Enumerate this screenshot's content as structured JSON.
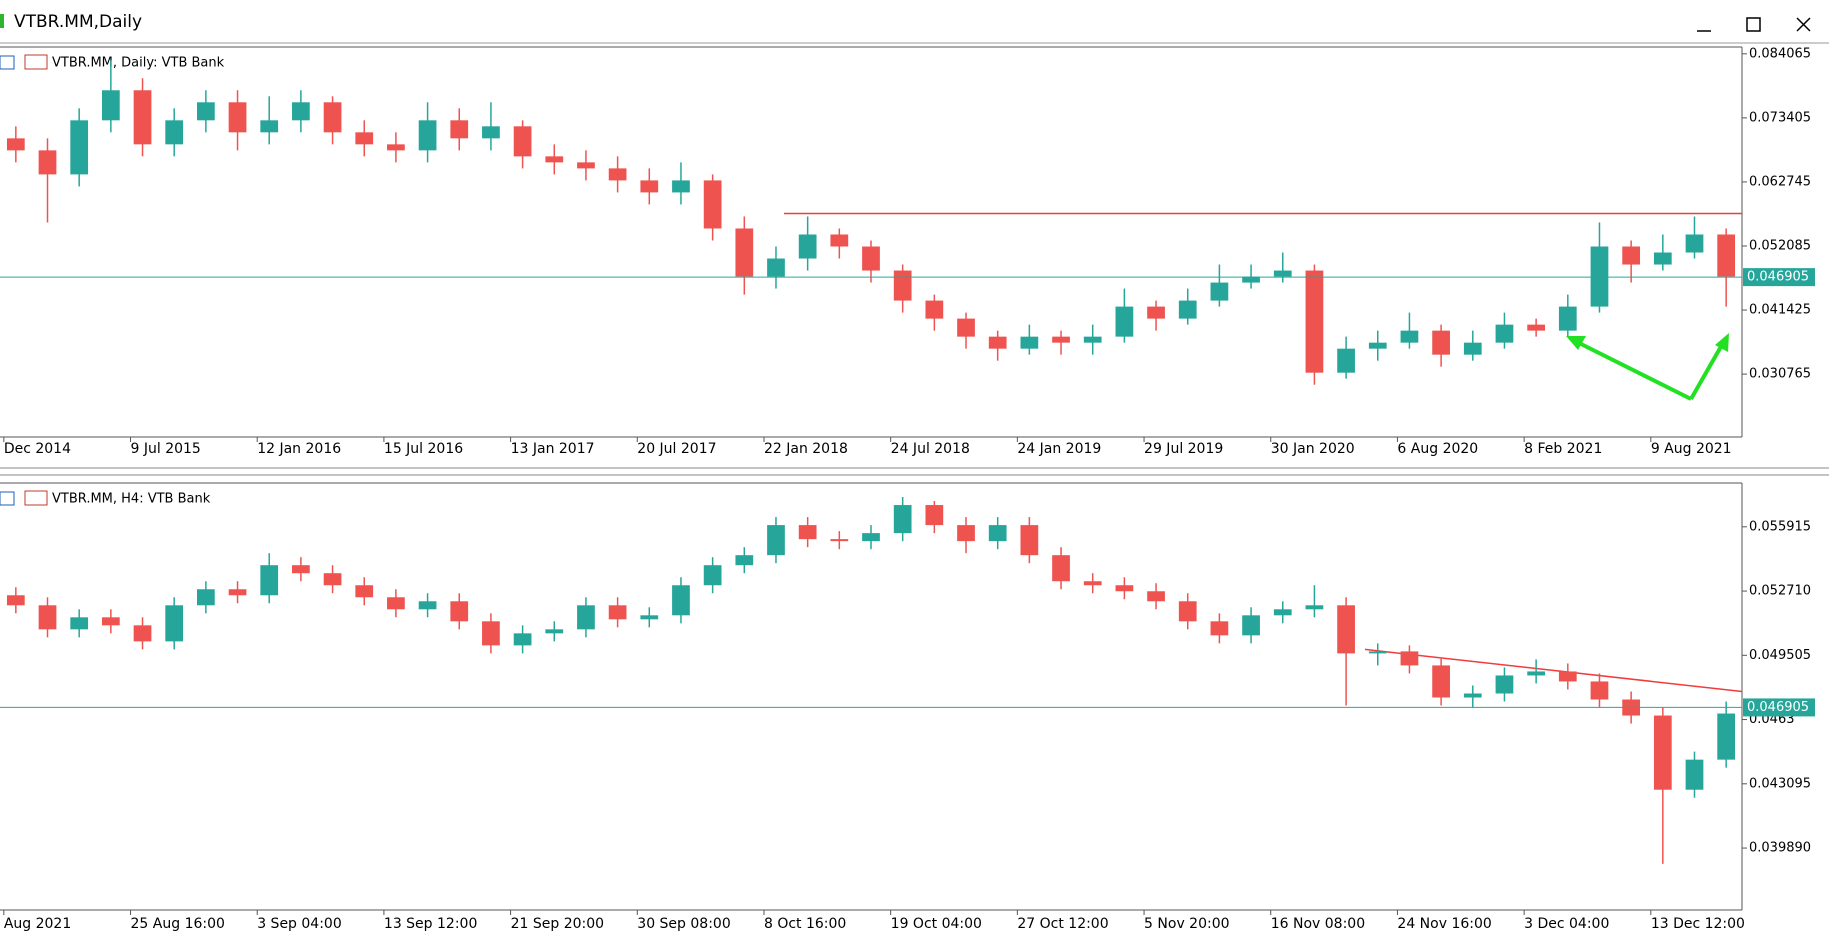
{
  "window": {
    "title": "VTBR.MM,Daily"
  },
  "chart_data": [
    {
      "type": "candlestick",
      "title": "VTBR.MM, Daily:  VTB Bank",
      "categories": [
        "Dec 2014",
        null,
        null,
        null,
        "9 Jul 2015",
        null,
        null,
        null,
        "12 Jan 2016",
        null,
        null,
        null,
        "15 Jul 2016",
        null,
        null,
        null,
        "13 Jan 2017",
        null,
        null,
        null,
        "20 Jul 2017",
        null,
        null,
        null,
        "22 Jan 2018",
        null,
        null,
        null,
        "24 Jul 2018",
        null,
        null,
        null,
        "24 Jan 2019",
        null,
        null,
        null,
        "29 Jul 2019",
        null,
        null,
        null,
        "30 Jan 2020",
        null,
        null,
        null,
        "6 Aug 2020",
        null,
        null,
        null,
        "8 Feb 2021",
        null,
        null,
        null,
        "9 Aug 2021",
        null,
        null
      ],
      "open": [
        0.07,
        0.068,
        0.064,
        0.073,
        0.078,
        0.069,
        0.073,
        0.076,
        0.071,
        0.073,
        0.076,
        0.071,
        0.069,
        0.068,
        0.073,
        0.07,
        0.072,
        0.067,
        0.066,
        0.065,
        0.063,
        0.061,
        0.063,
        0.055,
        0.047,
        0.05,
        0.054,
        0.052,
        0.048,
        0.043,
        0.04,
        0.037,
        0.035,
        0.037,
        0.036,
        0.037,
        0.042,
        0.04,
        0.043,
        0.046,
        0.047,
        0.048,
        0.031,
        0.035,
        0.036,
        0.038,
        0.034,
        0.036,
        0.039,
        0.038,
        0.042,
        0.052,
        0.049,
        0.051,
        0.054
      ],
      "high": [
        0.072,
        0.07,
        0.075,
        0.083,
        0.08,
        0.075,
        0.078,
        0.078,
        0.077,
        0.078,
        0.077,
        0.073,
        0.071,
        0.076,
        0.075,
        0.076,
        0.073,
        0.069,
        0.068,
        0.067,
        0.065,
        0.066,
        0.064,
        0.057,
        0.052,
        0.057,
        0.055,
        0.053,
        0.049,
        0.044,
        0.041,
        0.038,
        0.039,
        0.038,
        0.039,
        0.045,
        0.043,
        0.045,
        0.049,
        0.049,
        0.051,
        0.049,
        0.037,
        0.038,
        0.041,
        0.039,
        0.038,
        0.041,
        0.04,
        0.044,
        0.056,
        0.053,
        0.054,
        0.057,
        0.055
      ],
      "low": [
        0.066,
        0.056,
        0.062,
        0.071,
        0.067,
        0.067,
        0.071,
        0.068,
        0.069,
        0.071,
        0.069,
        0.067,
        0.066,
        0.066,
        0.068,
        0.068,
        0.065,
        0.064,
        0.063,
        0.061,
        0.059,
        0.059,
        0.053,
        0.044,
        0.045,
        0.048,
        0.05,
        0.046,
        0.041,
        0.038,
        0.035,
        0.033,
        0.034,
        0.034,
        0.034,
        0.036,
        0.038,
        0.039,
        0.042,
        0.045,
        0.046,
        0.029,
        0.03,
        0.033,
        0.035,
        0.032,
        0.033,
        0.035,
        0.037,
        0.037,
        0.041,
        0.046,
        0.048,
        0.05,
        0.042
      ],
      "close": [
        0.068,
        0.064,
        0.073,
        0.078,
        0.069,
        0.073,
        0.076,
        0.071,
        0.073,
        0.076,
        0.071,
        0.069,
        0.068,
        0.073,
        0.07,
        0.072,
        0.067,
        0.066,
        0.065,
        0.063,
        0.061,
        0.063,
        0.055,
        0.047,
        0.05,
        0.054,
        0.052,
        0.048,
        0.043,
        0.04,
        0.037,
        0.035,
        0.037,
        0.036,
        0.037,
        0.042,
        0.04,
        0.043,
        0.046,
        0.047,
        0.048,
        0.031,
        0.035,
        0.036,
        0.038,
        0.034,
        0.036,
        0.039,
        0.038,
        0.042,
        0.052,
        0.049,
        0.051,
        0.054,
        0.047
      ],
      "colors": {
        "up": "#26a69a",
        "down": "#ef5350"
      },
      "ylim": [
        0.0203,
        0.0852
      ],
      "yticks": [
        0.084065,
        0.073405,
        0.062745,
        0.052085,
        0.041425,
        0.030765
      ],
      "price_line": 0.046905,
      "resistance": 0.0575
    },
    {
      "type": "candlestick",
      "title": "VTBR.MM, H4:  VTB Bank",
      "categories": [
        "Aug 2021",
        null,
        null,
        null,
        "25 Aug 16:00",
        null,
        null,
        null,
        "3 Sep 04:00",
        null,
        null,
        null,
        "13 Sep 12:00",
        null,
        null,
        null,
        "21 Sep 20:00",
        null,
        null,
        null,
        "30 Sep 08:00",
        null,
        null,
        null,
        "8 Oct 16:00",
        null,
        null,
        null,
        "19 Oct 04:00",
        null,
        null,
        null,
        "27 Oct 12:00",
        null,
        null,
        null,
        "5 Nov 20:00",
        null,
        null,
        null,
        "16 Nov 08:00",
        null,
        null,
        null,
        "24 Nov 16:00",
        null,
        null,
        null,
        "3 Dec 04:00",
        null,
        null,
        null,
        "13 Dec 12:00",
        null,
        null
      ],
      "open": [
        0.0525,
        0.052,
        0.0508,
        0.0514,
        0.051,
        0.0502,
        0.052,
        0.0528,
        0.0525,
        0.054,
        0.0536,
        0.053,
        0.0524,
        0.0518,
        0.0522,
        0.0512,
        0.05,
        0.0506,
        0.0508,
        0.052,
        0.0513,
        0.0515,
        0.053,
        0.054,
        0.0545,
        0.056,
        0.0553,
        0.0552,
        0.0556,
        0.057,
        0.056,
        0.0552,
        0.056,
        0.0545,
        0.0532,
        0.053,
        0.0527,
        0.0522,
        0.0512,
        0.0505,
        0.0515,
        0.0518,
        0.052,
        0.0496,
        0.0497,
        0.049,
        0.0474,
        0.0476,
        0.0485,
        0.0487,
        0.0482,
        0.0473,
        0.0465,
        0.0428,
        0.0443
      ],
      "high": [
        0.0529,
        0.0524,
        0.0518,
        0.0518,
        0.0514,
        0.0524,
        0.0532,
        0.0532,
        0.0546,
        0.0544,
        0.054,
        0.0534,
        0.0528,
        0.0526,
        0.0526,
        0.0516,
        0.051,
        0.0512,
        0.0524,
        0.0524,
        0.0519,
        0.0534,
        0.0544,
        0.0549,
        0.0564,
        0.0564,
        0.0557,
        0.056,
        0.0574,
        0.0572,
        0.0564,
        0.0564,
        0.0564,
        0.0549,
        0.0536,
        0.0534,
        0.0531,
        0.0526,
        0.0516,
        0.0519,
        0.0522,
        0.053,
        0.0524,
        0.0501,
        0.05,
        0.0494,
        0.048,
        0.0489,
        0.0493,
        0.0491,
        0.0486,
        0.0477,
        0.0469,
        0.0447,
        0.0472
      ],
      "low": [
        0.0516,
        0.0504,
        0.0504,
        0.0506,
        0.0498,
        0.0498,
        0.0516,
        0.0521,
        0.0521,
        0.0532,
        0.0526,
        0.052,
        0.0514,
        0.0514,
        0.0508,
        0.0496,
        0.0496,
        0.0502,
        0.0504,
        0.0509,
        0.0509,
        0.0511,
        0.0526,
        0.0536,
        0.0541,
        0.0549,
        0.0548,
        0.0548,
        0.0552,
        0.0556,
        0.0546,
        0.0548,
        0.0541,
        0.0528,
        0.0526,
        0.0523,
        0.0518,
        0.0508,
        0.0501,
        0.0501,
        0.0511,
        0.0514,
        0.047,
        0.049,
        0.0486,
        0.047,
        0.0469,
        0.0472,
        0.0481,
        0.0478,
        0.0469,
        0.0461,
        0.0391,
        0.0424,
        0.0439
      ],
      "close": [
        0.052,
        0.0508,
        0.0514,
        0.051,
        0.0502,
        0.052,
        0.0528,
        0.0525,
        0.054,
        0.0536,
        0.053,
        0.0524,
        0.0518,
        0.0522,
        0.0512,
        0.05,
        0.0506,
        0.0508,
        0.052,
        0.0513,
        0.0515,
        0.053,
        0.054,
        0.0545,
        0.056,
        0.0553,
        0.0552,
        0.0556,
        0.057,
        0.056,
        0.0552,
        0.056,
        0.0545,
        0.0532,
        0.053,
        0.0527,
        0.0522,
        0.0512,
        0.0505,
        0.0515,
        0.0518,
        0.052,
        0.0496,
        0.0497,
        0.049,
        0.0474,
        0.0476,
        0.0485,
        0.0487,
        0.0482,
        0.0473,
        0.0465,
        0.0428,
        0.0443,
        0.0466
      ],
      "colors": {
        "up": "#26a69a",
        "down": "#ef5350"
      },
      "ylim": [
        0.0368,
        0.0581
      ],
      "yticks": [
        0.055915,
        {
          "value": 0.05271,
          "label": "0.052710"
        },
        0.049505,
        0.0463,
        0.043095,
        {
          "value": 0.03989,
          "label": "0.039890"
        }
      ],
      "price_line": 0.046905,
      "trendline": [
        0.0498,
        0.0477
      ]
    }
  ]
}
